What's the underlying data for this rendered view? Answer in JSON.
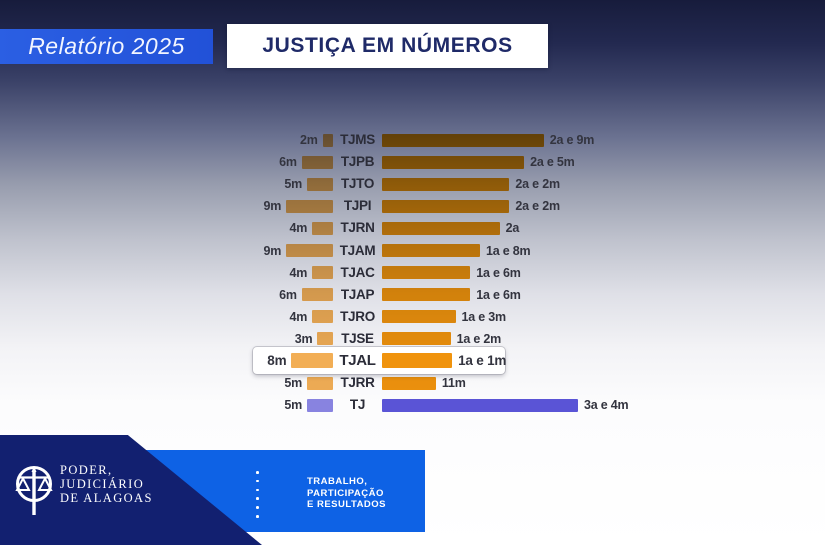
{
  "header": {
    "report_label": "Relatório 2025",
    "title": "JUSTIÇA EM NÚMEROS"
  },
  "chart_data": {
    "type": "bar",
    "orientation": "horizontal-diverging",
    "unit": "months",
    "title": "JUSTIÇA EM NÚMEROS",
    "grid": false,
    "legend_position": "none",
    "categories": [
      "TJMS",
      "TJPB",
      "TJTO",
      "TJPI",
      "TJRN",
      "TJAM",
      "TJAC",
      "TJAP",
      "TJRO",
      "TJSE",
      "TJAL",
      "TJRR",
      "TJ"
    ],
    "series": [
      {
        "name": "left-duration",
        "side": "left",
        "values": [
          2,
          6,
          5,
          9,
          4,
          9,
          4,
          6,
          4,
          3,
          8,
          5,
          5
        ],
        "labels": [
          "2m",
          "6m",
          "5m",
          "9m",
          "4m",
          "9m",
          "4m",
          "6m",
          "4m",
          "3m",
          "8m",
          "5m",
          "5m"
        ],
        "color": "#F2AE55",
        "color_tj": "#8A85E2"
      },
      {
        "name": "right-duration",
        "side": "right",
        "values": [
          33,
          29,
          26,
          26,
          24,
          20,
          18,
          18,
          15,
          14,
          13,
          11,
          40
        ],
        "labels": [
          "2a e 9m",
          "2a e 5m",
          "2a e 2m",
          "2a e 2m",
          "2a",
          "1a e 8m",
          "1a e 6m",
          "1a e 6m",
          "1a e 3m",
          "1a e 2m",
          "1a e 1m",
          "11m",
          "3a e 4m"
        ],
        "color": "#F0930D",
        "color_tj": "#5B55D8"
      }
    ],
    "highlighted_category": "TJAL"
  },
  "footer": {
    "org_lines": [
      "PODER,",
      "JUDICIÁRIO",
      "DE ALAGOAS"
    ],
    "slogan_lines": [
      "TRABALHO,",
      "PARTICIPAÇÃO",
      "E RESULTADOS"
    ]
  },
  "colors": {
    "ribbon_blue": "#2251D8",
    "title_navy": "#1F2A68",
    "footer_navy": "#122070",
    "footer_blue": "#0E62E5",
    "orange": "#F0930D",
    "light_orange": "#F2AE55",
    "purple": "#5B55D8",
    "light_purple": "#8A85E2",
    "text_dark": "#33343F"
  }
}
